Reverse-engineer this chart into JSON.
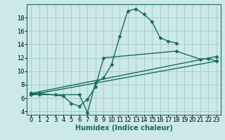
{
  "xlabel": "Humidex (Indice chaleur)",
  "bg_color": "#cce8eb",
  "grid_color": "#aacccc",
  "line_color": "#1a6b5a",
  "xlim": [
    -0.5,
    23.5
  ],
  "ylim": [
    3.5,
    20.0
  ],
  "xticks": [
    0,
    1,
    2,
    3,
    4,
    5,
    6,
    7,
    8,
    9,
    10,
    11,
    12,
    13,
    14,
    15,
    16,
    17,
    18,
    19,
    20,
    21,
    22,
    23
  ],
  "yticks": [
    4,
    6,
    8,
    10,
    12,
    14,
    16,
    18
  ],
  "series": [
    {
      "x": [
        0,
        1,
        3,
        6,
        7,
        8,
        9,
        10,
        11,
        12,
        13,
        14,
        15,
        16,
        17,
        18
      ],
      "y": [
        6.5,
        6.5,
        6.5,
        6.5,
        3.8,
        8.3,
        9.0,
        11.0,
        15.2,
        19.0,
        19.3,
        18.5,
        17.4,
        15.0,
        14.5,
        14.2
      ]
    },
    {
      "x": [
        0,
        1,
        4,
        5,
        6,
        7,
        8,
        9,
        18,
        21,
        22,
        23
      ],
      "y": [
        6.7,
        6.7,
        6.3,
        5.2,
        4.8,
        5.8,
        7.7,
        12.0,
        13.0,
        11.8,
        11.9,
        11.5
      ]
    },
    {
      "x": [
        0,
        23
      ],
      "y": [
        6.5,
        11.5
      ]
    },
    {
      "x": [
        0,
        23
      ],
      "y": [
        6.7,
        12.2
      ]
    }
  ]
}
